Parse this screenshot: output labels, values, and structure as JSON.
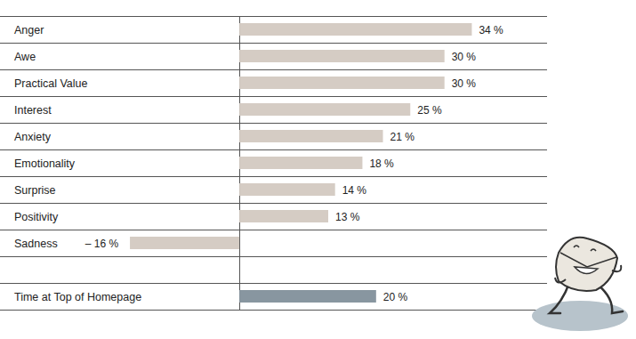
{
  "chart_data": {
    "type": "bar",
    "orientation": "horizontal",
    "categories": [
      "Anger",
      "Awe",
      "Practical Value",
      "Interest",
      "Anxiety",
      "Emotionality",
      "Surprise",
      "Positivity",
      "Sadness",
      null,
      "Time at Top of Homepage"
    ],
    "values": [
      34,
      30,
      30,
      25,
      21,
      18,
      14,
      13,
      -16,
      null,
      20
    ],
    "value_labels": [
      "34 %",
      "30 %",
      "30 %",
      "25 %",
      "21 %",
      "18 %",
      "14 %",
      "13 %",
      "– 16 %",
      null,
      "20 %"
    ],
    "colors": [
      "#d5ccc4",
      "#d5ccc4",
      "#d5ccc4",
      "#d5ccc4",
      "#d5ccc4",
      "#d5ccc4",
      "#d5ccc4",
      "#d5ccc4",
      "#d5ccc4",
      null,
      "#8896a0"
    ],
    "xlim": [
      -35,
      45
    ],
    "xticks": [
      0
    ],
    "data_labels": true,
    "tick_labels": false,
    "grid": true
  }
}
